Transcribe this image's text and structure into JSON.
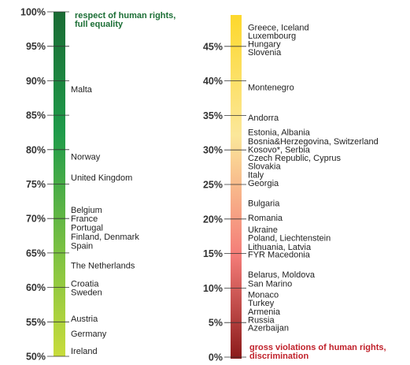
{
  "chart_data": [
    {
      "type": "scale",
      "ylim": [
        50,
        100
      ],
      "ticks": [
        {
          "value": 100,
          "label": "100%"
        },
        {
          "value": 95,
          "label": "95%"
        },
        {
          "value": 90,
          "label": "90%"
        },
        {
          "value": 85,
          "label": "85%"
        },
        {
          "value": 80,
          "label": "80%"
        },
        {
          "value": 75,
          "label": "75%"
        },
        {
          "value": 70,
          "label": "70%"
        },
        {
          "value": 65,
          "label": "65%"
        },
        {
          "value": 60,
          "label": "60%"
        },
        {
          "value": 55,
          "label": "55%"
        },
        {
          "value": 50,
          "label": "50%"
        }
      ],
      "top_note": [
        "respect of human rights,",
        "full equality"
      ],
      "top_note_color": "#1b6e35",
      "colors": {
        "top": "#1a6b34",
        "upper_mid": "#1f9b4a",
        "lower_mid": "#7dc242",
        "bottom": "#c8dc3c"
      },
      "entries": [
        {
          "label": "Malta",
          "value": 88.8
        },
        {
          "label": "Norway",
          "value": 79.0
        },
        {
          "label": "United Kingdom",
          "value": 76.0
        },
        {
          "label": "Belgium",
          "value": 71.3
        },
        {
          "label": "France",
          "value": 70.0
        },
        {
          "label": "Portugal",
          "value": 68.7
        },
        {
          "label": "Finland, Denmark",
          "value": 67.4
        },
        {
          "label": "Spain",
          "value": 66.1
        },
        {
          "label": "The Netherlands",
          "value": 63.2
        },
        {
          "label": "Croatia",
          "value": 60.6
        },
        {
          "label": "Sweden",
          "value": 59.3
        },
        {
          "label": "Austria",
          "value": 55.5
        },
        {
          "label": "Germany",
          "value": 53.3
        },
        {
          "label": "Ireland",
          "value": 50.8
        }
      ]
    },
    {
      "type": "scale",
      "ylim": [
        0,
        50
      ],
      "ticks": [
        {
          "value": 45,
          "label": "45%"
        },
        {
          "value": 40,
          "label": "40%"
        },
        {
          "value": 35,
          "label": "35%"
        },
        {
          "value": 30,
          "label": "30%"
        },
        {
          "value": 25,
          "label": "25%"
        },
        {
          "value": 20,
          "label": "20%"
        },
        {
          "value": 15,
          "label": "15%"
        },
        {
          "value": 10,
          "label": "10%"
        },
        {
          "value": 5,
          "label": "5%"
        },
        {
          "value": 0,
          "label": "0%"
        }
      ],
      "bottom_note": [
        "gross violations of human rights,",
        "discrimination"
      ],
      "bottom_note_color": "#c0202a",
      "colors": {
        "top": "#fdd82c",
        "upper_mid": "#fbe79a",
        "lower_mid": "#f47c78",
        "bottom": "#8b1a1a"
      },
      "entries": [
        {
          "label": "Greece, Iceland",
          "value": 47.8
        },
        {
          "label": "Luxembourg",
          "value": 46.6
        },
        {
          "label": "Hungary",
          "value": 45.4
        },
        {
          "label": "Slovenia",
          "value": 44.2
        },
        {
          "label": "Montenegro",
          "value": 39.1
        },
        {
          "label": "Andorra",
          "value": 34.7
        },
        {
          "label": "Estonia, Albania",
          "value": 32.6
        },
        {
          "label": "Bosnia&Herzegovina, Switzerland",
          "value": 31.3
        },
        {
          "label": "Kosovo*, Serbia",
          "value": 30.1
        },
        {
          "label": "Czech Republic, Cyprus",
          "value": 28.9
        },
        {
          "label": "Slovakia",
          "value": 27.7
        },
        {
          "label": "Italy",
          "value": 26.4
        },
        {
          "label": "Georgia",
          "value": 25.2
        },
        {
          "label": "Bulgaria",
          "value": 22.3
        },
        {
          "label": "Romania",
          "value": 20.2
        },
        {
          "label": "Ukraine",
          "value": 18.5
        },
        {
          "label": "Poland, Liechtenstein",
          "value": 17.3
        },
        {
          "label": "Lithuania, Latvia",
          "value": 16.0
        },
        {
          "label": "FYR Macedonia",
          "value": 14.9
        },
        {
          "label": "Belarus, Moldova",
          "value": 12.0
        },
        {
          "label": "San Marino",
          "value": 10.7
        },
        {
          "label": "Monaco",
          "value": 9.1
        },
        {
          "label": "Turkey",
          "value": 7.9
        },
        {
          "label": "Armenia",
          "value": 6.6
        },
        {
          "label": "Russia",
          "value": 5.4
        },
        {
          "label": "Azerbaijan",
          "value": 4.3
        }
      ]
    }
  ]
}
